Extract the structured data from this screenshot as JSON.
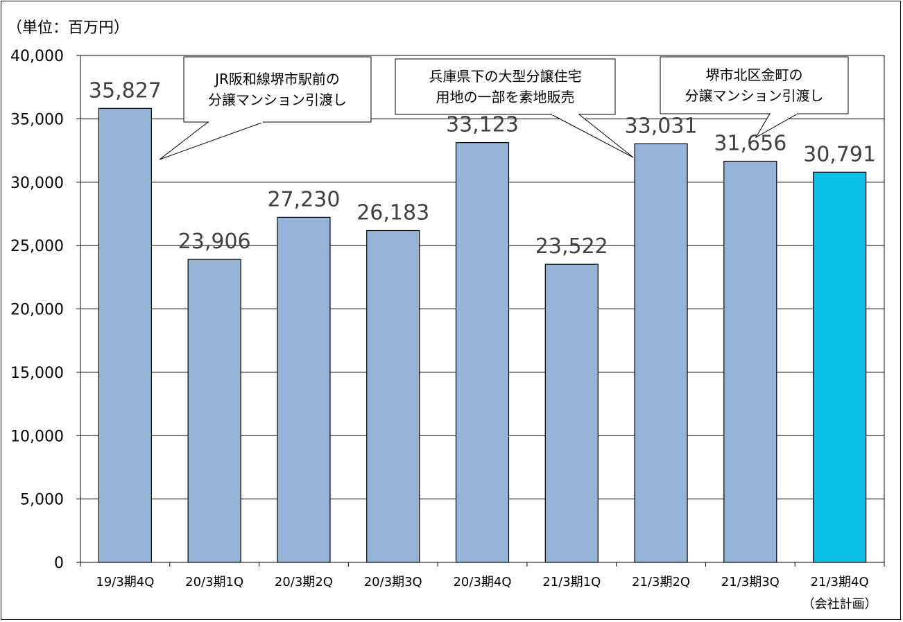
{
  "chart_data": {
    "type": "bar",
    "unit_label": "（単位：百万円）",
    "categories": [
      [
        "19/3期4Q"
      ],
      [
        "20/3期1Q"
      ],
      [
        "20/3期2Q"
      ],
      [
        "20/3期3Q"
      ],
      [
        "20/3期4Q"
      ],
      [
        "21/3期1Q"
      ],
      [
        "21/3期2Q"
      ],
      [
        "21/3期3Q"
      ],
      [
        "21/3期4Q",
        "（会社計画）"
      ]
    ],
    "values": [
      35827,
      23906,
      27230,
      26183,
      33123,
      23522,
      33031,
      31656,
      30791
    ],
    "value_labels": [
      "35,827",
      "23,906",
      "27,230",
      "26,183",
      "33,123",
      "23,522",
      "33,031",
      "31,656",
      "30,791"
    ],
    "ylim": [
      0,
      40000
    ],
    "yticks": [
      0,
      5000,
      10000,
      15000,
      20000,
      25000,
      30000,
      35000,
      40000
    ],
    "ytick_labels": [
      "0",
      "5,000",
      "10,000",
      "15,000",
      "20,000",
      "25,000",
      "30,000",
      "35,000",
      "40,000"
    ],
    "grid": true,
    "colors": {
      "bar": "#95b3d7",
      "highlight_bar": "#0bc1e8",
      "bar_stroke": "#000000",
      "label": "#404040"
    },
    "highlight_index": 8,
    "annotations": [
      {
        "lines": [
          "JR阪和線堺市駅前の",
          "分譲マンション引渡し"
        ],
        "target_index": 0
      },
      {
        "lines": [
          "兵庫県下の大型分譲住宅",
          "用地の一部を素地販売"
        ],
        "target_index": 6
      },
      {
        "lines": [
          "堺市北区金町の",
          "分譲マンション引渡し"
        ],
        "target_index": 7
      }
    ]
  }
}
